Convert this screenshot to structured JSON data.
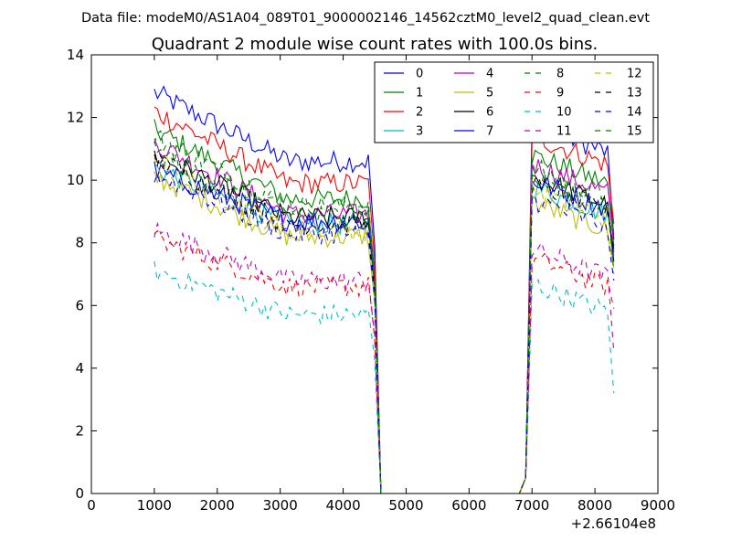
{
  "figure": {
    "suptitle": "Data file: modeM0/AS1A04_089T01_9000002146_14562cztM0_level2_quad_clean.evt",
    "title": "Quadrant 2 module wise count rates with 100.0s bins.",
    "offset_label": "+2.66104e8"
  },
  "chart_data": {
    "type": "line",
    "title": "Quadrant 2 module wise count rates with 100.0s bins.",
    "xlabel": "",
    "ylabel": "",
    "xlim": [
      0,
      9000
    ],
    "ylim": [
      0,
      14
    ],
    "x_offset": 266104000,
    "x_ticks": [
      0,
      1000,
      2000,
      3000,
      4000,
      5000,
      6000,
      7000,
      8000,
      9000
    ],
    "y_ticks": [
      0,
      2,
      4,
      6,
      8,
      10,
      12,
      14
    ],
    "legend_location": "upper right",
    "legend_columns": 4,
    "time_segments": [
      {
        "start": 1000,
        "end": 4400,
        "step": 50
      },
      {
        "fixed": [
          4500,
          4600,
          6800,
          6900,
          6950
        ]
      },
      {
        "start": 7000,
        "end": 8200,
        "step": 50
      },
      {
        "fixed": [
          8300
        ]
      }
    ],
    "series": [
      {
        "name": "0",
        "color": "#0000ff",
        "style": "solid",
        "base": 10.6,
        "start": 12.8,
        "noise": 0.35,
        "post": 11.2,
        "end": 8.1
      },
      {
        "name": "1",
        "color": "#008000",
        "style": "solid",
        "base": 9.4,
        "start": 11.6,
        "noise": 0.35,
        "post": 10.2,
        "end": 8.3
      },
      {
        "name": "2",
        "color": "#ff0000",
        "style": "solid",
        "base": 9.9,
        "start": 12.2,
        "noise": 0.35,
        "post": 10.8,
        "end": 8.6
      },
      {
        "name": "3",
        "color": "#00bfbf",
        "style": "solid",
        "base": 8.6,
        "start": 10.4,
        "noise": 0.35,
        "post": 9.2,
        "end": 7.6
      },
      {
        "name": "4",
        "color": "#bf00bf",
        "style": "solid",
        "base": 8.9,
        "start": 11.2,
        "noise": 0.35,
        "post": 9.9,
        "end": 7.9
      },
      {
        "name": "5",
        "color": "#bfbf00",
        "style": "solid",
        "base": 8.2,
        "start": 10.1,
        "noise": 0.35,
        "post": 8.7,
        "end": 7.2
      },
      {
        "name": "6",
        "color": "#000000",
        "style": "solid",
        "base": 8.8,
        "start": 10.8,
        "noise": 0.35,
        "post": 9.5,
        "end": 7.8
      },
      {
        "name": "7",
        "color": "#0000ff",
        "style": "solid",
        "base": 8.7,
        "start": 10.3,
        "noise": 0.35,
        "post": 9.4,
        "end": 7.4
      },
      {
        "name": "8",
        "color": "#008000",
        "style": "dashed",
        "base": 9.2,
        "start": 11.4,
        "noise": 0.35,
        "post": 9.8,
        "end": 7.7
      },
      {
        "name": "9",
        "color": "#ff0000",
        "style": "dashed",
        "base": 6.6,
        "start": 8.1,
        "noise": 0.35,
        "post": 6.9,
        "end": 5.9
      },
      {
        "name": "10",
        "color": "#00bfbf",
        "style": "dashed",
        "base": 5.7,
        "start": 7.1,
        "noise": 0.35,
        "post": 6.1,
        "end": 3.2
      },
      {
        "name": "11",
        "color": "#bf00bf",
        "style": "dashed",
        "base": 6.8,
        "start": 8.4,
        "noise": 0.35,
        "post": 7.2,
        "end": 4.5
      },
      {
        "name": "12",
        "color": "#bfbf00",
        "style": "dashed",
        "base": 8.4,
        "start": 10.6,
        "noise": 0.35,
        "post": 9.1,
        "end": 7.0
      },
      {
        "name": "13",
        "color": "#000000",
        "style": "dashed",
        "base": 8.6,
        "start": 10.7,
        "noise": 0.35,
        "post": 9.3,
        "end": 7.3
      },
      {
        "name": "14",
        "color": "#0000ff",
        "style": "dashed",
        "base": 8.3,
        "start": 10.2,
        "noise": 0.35,
        "post": 8.8,
        "end": 6.8
      },
      {
        "name": "15",
        "color": "#008000",
        "style": "dashed",
        "base": 8.9,
        "start": 10.9,
        "noise": 0.35,
        "post": 9.5,
        "end": 7.1
      }
    ]
  }
}
